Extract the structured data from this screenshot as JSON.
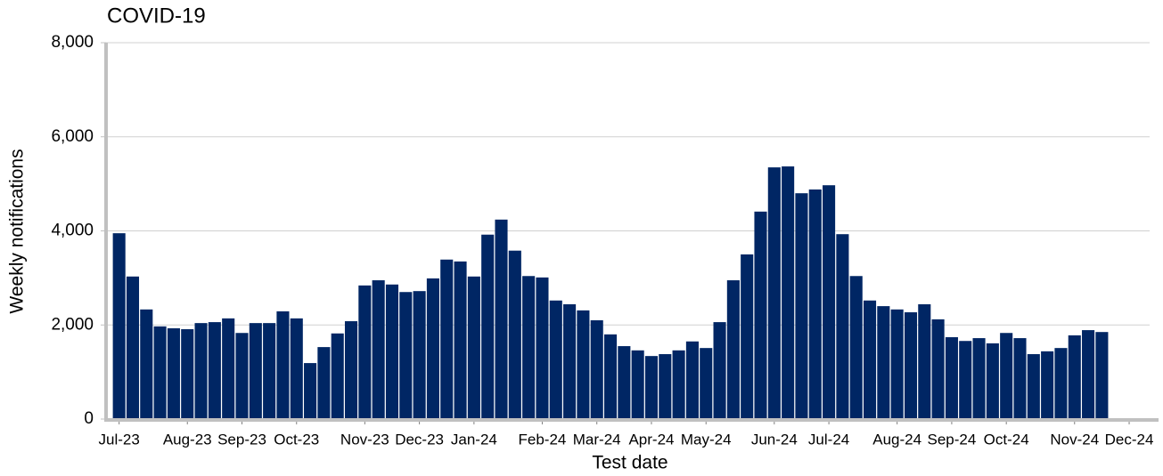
{
  "chart_data": {
    "type": "bar",
    "title": "COVID-19",
    "x_label": "Test date",
    "y_label": "Weekly notifications",
    "categories": [
      "Jul-23",
      null,
      null,
      null,
      null,
      "Aug-23",
      null,
      null,
      null,
      "Sep-23",
      null,
      null,
      null,
      "Oct-23",
      null,
      null,
      null,
      null,
      "Nov-23",
      null,
      null,
      null,
      "Dec-23",
      null,
      null,
      null,
      "Jan-24",
      null,
      null,
      null,
      null,
      "Feb-24",
      null,
      null,
      null,
      "Mar-24",
      null,
      null,
      null,
      "Apr-24",
      null,
      null,
      null,
      "May-24",
      null,
      null,
      null,
      null,
      "Jun-24",
      null,
      null,
      null,
      "Jul-24",
      null,
      null,
      null,
      null,
      "Aug-24",
      null,
      null,
      null,
      "Sep-24",
      null,
      null,
      null,
      "Oct-24",
      null,
      null,
      null,
      null,
      "Nov-24",
      null,
      null,
      null,
      "Dec-24",
      null
    ],
    "values": [
      3950,
      3030,
      2330,
      1970,
      1930,
      1910,
      2040,
      2060,
      2140,
      1830,
      2040,
      2040,
      2290,
      2140,
      1190,
      1530,
      1820,
      2080,
      2840,
      2950,
      2860,
      2700,
      2720,
      2990,
      3390,
      3350,
      3030,
      3920,
      4240,
      3580,
      3040,
      3010,
      2520,
      2440,
      2310,
      2100,
      1800,
      1550,
      1460,
      1340,
      1380,
      1460,
      1650,
      1510,
      2060,
      2950,
      3500,
      4410,
      5350,
      5370,
      4800,
      4880,
      4970,
      3930,
      3040,
      2520,
      2400,
      2330,
      2270,
      2440,
      2120,
      1740,
      1660,
      1720,
      1610,
      1830,
      1720,
      1380,
      1440,
      1510,
      1780,
      1890,
      1850,
      null,
      null,
      null
    ],
    "color": "#002664",
    "ylim": [
      0,
      8000
    ],
    "yticks": [
      0,
      {
        "value": 2000,
        "label": "2,000"
      },
      {
        "value": 4000,
        "label": "4,000"
      },
      {
        "value": 6000,
        "label": "6,000"
      },
      {
        "value": 8000,
        "label": "8,000"
      }
    ],
    "grid": true
  }
}
